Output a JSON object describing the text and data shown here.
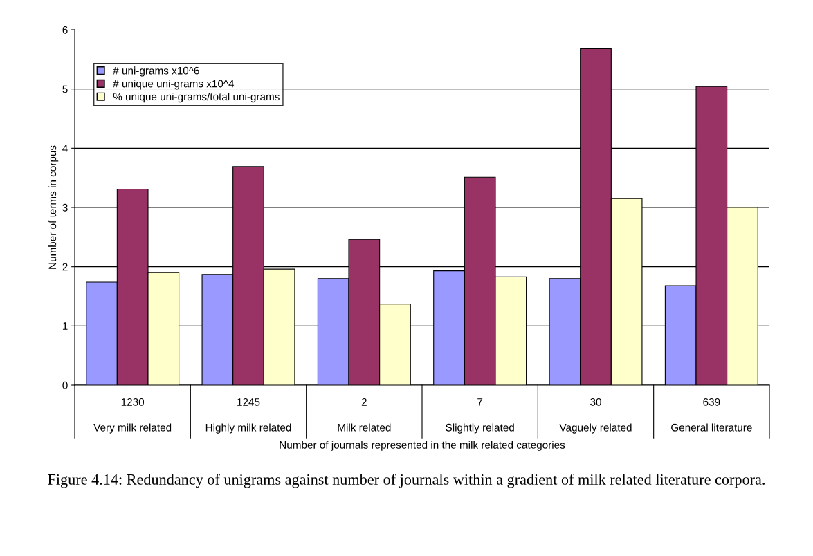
{
  "chart_data": {
    "type": "bar",
    "xlabel": "Number of journals represented in the milk related categories",
    "ylabel": "Number of terms in corpus",
    "categories": [
      "1230\nVery milk related",
      "1245\nHighly milk related",
      "2\nMilk related",
      "7\nSlightly related",
      "30\nVaguely related",
      "639\nGeneral literature"
    ],
    "series": [
      {
        "name": "# uni-grams x10^6",
        "color": "#9999ff",
        "values": [
          1.74,
          1.87,
          1.8,
          1.93,
          1.8,
          1.68
        ]
      },
      {
        "name": "# unique uni-grams x10^4",
        "color": "#993366",
        "values": [
          3.31,
          3.69,
          2.46,
          3.51,
          5.68,
          5.04
        ]
      },
      {
        "name": "% unique uni-grams/total uni-grams",
        "color": "#ffffcc",
        "values": [
          1.9,
          1.96,
          1.37,
          1.83,
          3.15,
          3.0
        ]
      }
    ],
    "ylim": [
      0,
      6
    ],
    "yticks": [
      0,
      1,
      2,
      3,
      4,
      5,
      6
    ],
    "grid": "y",
    "legend": "top left",
    "annotations": [
      "Figure 4.14: Redundancy of unigrams against number of journals within a gradient of milk related literature corpora."
    ]
  }
}
